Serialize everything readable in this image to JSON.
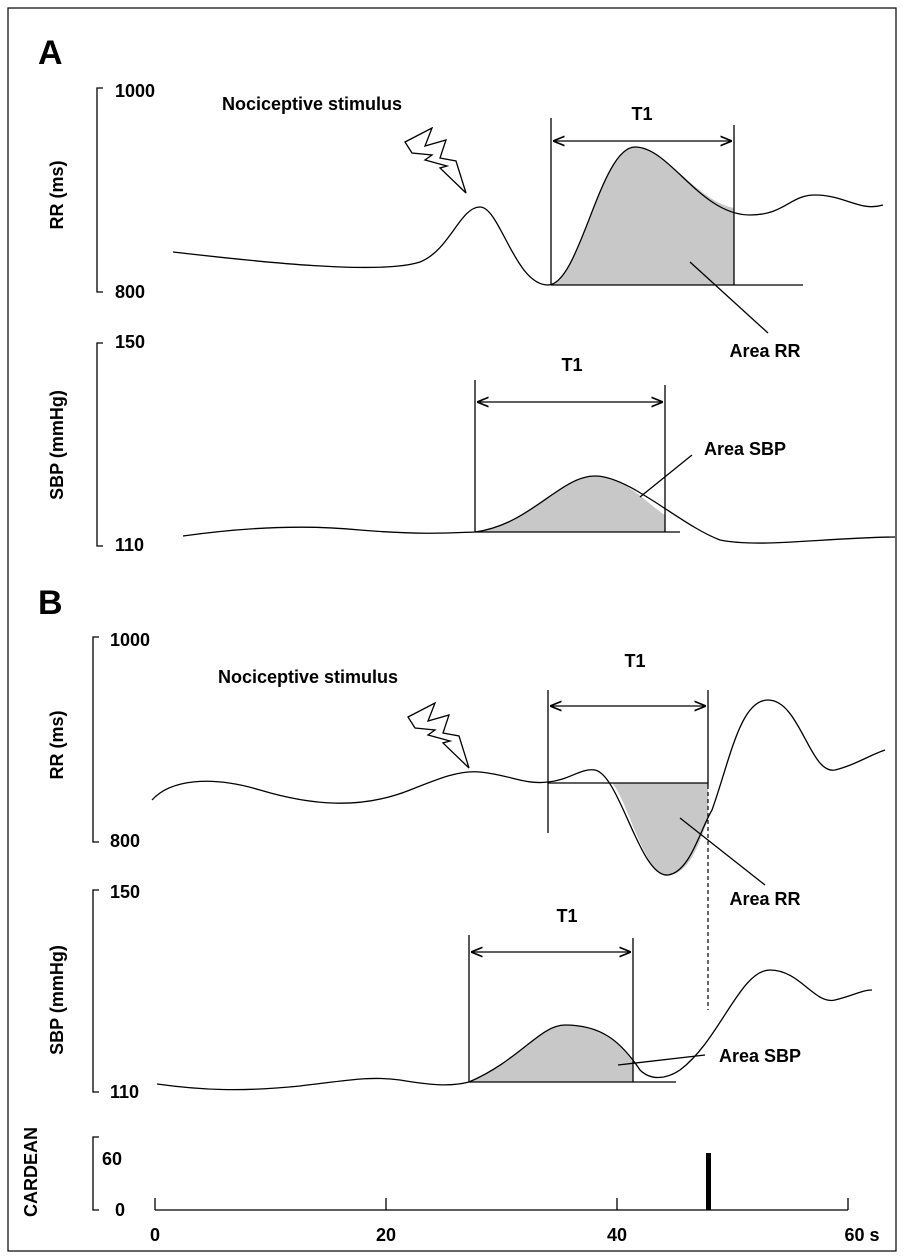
{
  "panels": [
    {
      "label": "A",
      "rr": {
        "axis_label": "RR (ms)",
        "ticks": [
          "1000",
          "800"
        ],
        "stimulus": "Nociceptive stimulus",
        "interval": "T1",
        "area": "Area RR"
      },
      "sbp": {
        "axis_label": "SBP (mmHg)",
        "ticks": [
          "150",
          "110"
        ],
        "interval": "T1",
        "area": "Area SBP"
      }
    },
    {
      "label": "B",
      "rr": {
        "axis_label": "RR (ms)",
        "ticks": [
          "1000",
          "800"
        ],
        "stimulus": "Nociceptive stimulus",
        "interval": "T1",
        "area": "Area RR"
      },
      "sbp": {
        "axis_label": "SBP (mmHg)",
        "ticks": [
          "150",
          "110"
        ],
        "interval": "T1",
        "area": "Area SBP"
      }
    }
  ],
  "cardean": {
    "axis_label": "CARDEAN",
    "ticks": [
      "60",
      "0"
    ]
  },
  "time_axis": {
    "ticks": [
      "0",
      "20",
      "40",
      "60 s"
    ]
  }
}
